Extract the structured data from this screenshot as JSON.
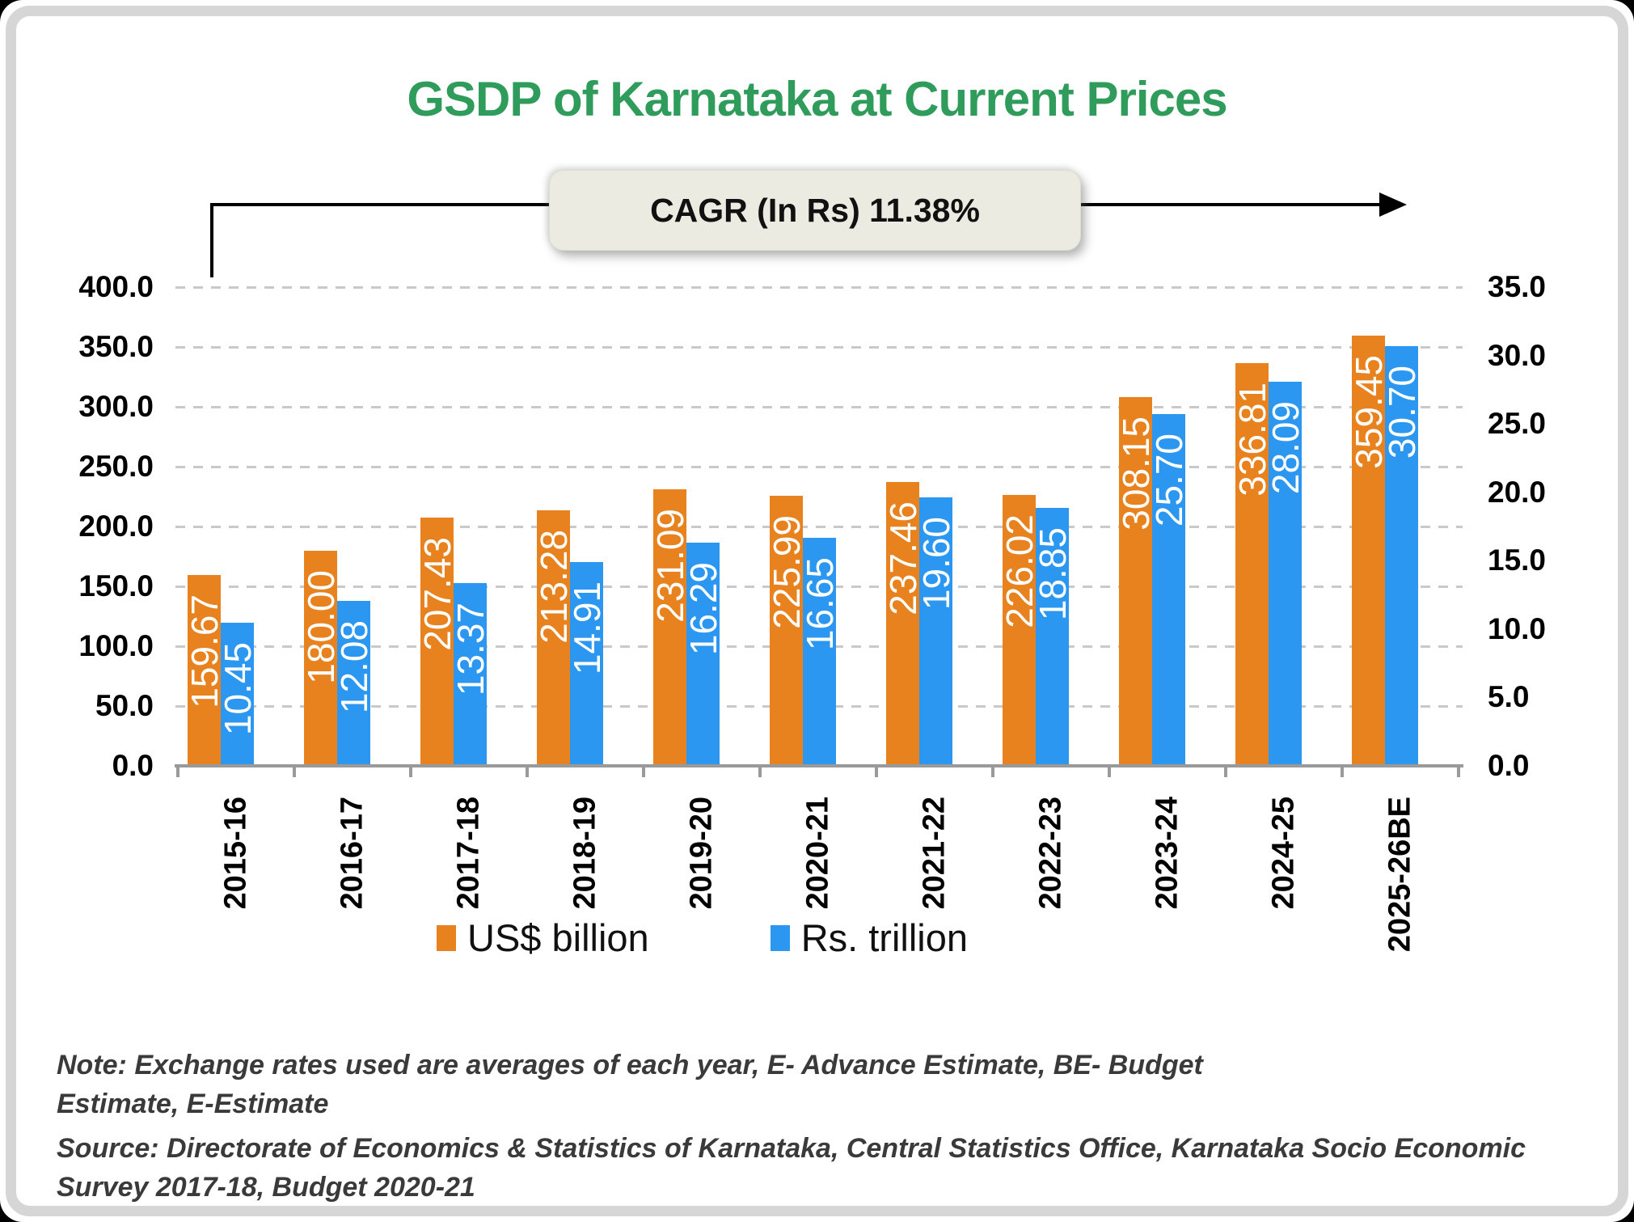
{
  "title": "GSDP of Karnataka at Current Prices",
  "annotation": {
    "cagr_label": "CAGR (In Rs) 11.38%"
  },
  "chart_data": {
    "type": "bar",
    "title": "GSDP of Karnataka at Current Prices",
    "categories": [
      "2015-16",
      "2016-17",
      "2017-18",
      "2018-19",
      "2019-20",
      "2020-21",
      "2021-22",
      "2022-23",
      "2023-24",
      "2024-25",
      "2025-26BE"
    ],
    "series": [
      {
        "name": "US$ billion",
        "axis": "left",
        "color": "#e8821e",
        "values": [
          159.67,
          180.0,
          207.43,
          213.28,
          231.09,
          225.99,
          237.46,
          226.02,
          308.15,
          336.81,
          359.45
        ],
        "labels": [
          "159.67",
          "180.00",
          "207.43",
          "213.28",
          "231.09",
          "225.99",
          "237.46",
          "226.02",
          "308.15",
          "336.81",
          "359.45"
        ]
      },
      {
        "name": "Rs. trillion",
        "axis": "right",
        "color": "#2b97f1",
        "values": [
          10.45,
          12.08,
          13.37,
          14.91,
          16.29,
          16.65,
          19.6,
          18.85,
          25.7,
          28.09,
          30.7
        ],
        "labels": [
          "10.45",
          "12.08",
          "13.37",
          "14.91",
          "16.29",
          "16.65",
          "19.60",
          "18.85",
          "25.70",
          "28.09",
          "30.70"
        ]
      }
    ],
    "left_axis": {
      "min": 0,
      "max": 400,
      "step": 50,
      "tick_labels": [
        "0.0",
        "50.0",
        "100.0",
        "150.0",
        "200.0",
        "250.0",
        "300.0",
        "350.0",
        "400.0"
      ]
    },
    "right_axis": {
      "min": 0,
      "max": 35,
      "step": 5,
      "tick_labels": [
        "0.0",
        "5.0",
        "10.0",
        "15.0",
        "20.0",
        "25.0",
        "30.0",
        "35.0"
      ]
    },
    "grid": "horizontal-dashed",
    "legend_position": "bottom"
  },
  "legend": {
    "items": [
      {
        "label": "US$ billion",
        "color": "#e8821e"
      },
      {
        "label": "Rs. trillion",
        "color": "#2b97f1"
      }
    ]
  },
  "note": "Note: Exchange rates used are averages of each year, E- Advance Estimate, BE- Budget\nEstimate, E-Estimate",
  "source": "Source: Directorate of Economics & Statistics of Karnataka, Central Statistics Office, Karnataka Socio Economic\nSurvey 2017-18, Budget 2020-21",
  "colors": {
    "title_green": "#2f9c5c",
    "bar_orange": "#e8821e",
    "bar_blue": "#2b97f1",
    "cagr_box_fill": "#ecebe1",
    "gridline": "#c9c9c9",
    "axis_line": "#9a9a9a",
    "note_gray": "#3a3a3a"
  }
}
